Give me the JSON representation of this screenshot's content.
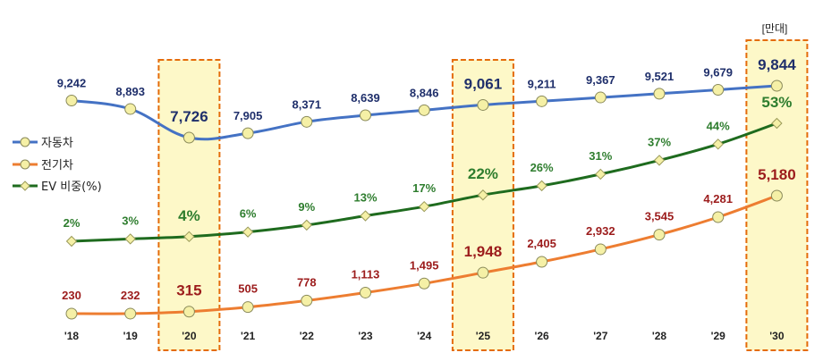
{
  "chart_data": {
    "type": "line",
    "unit_label": "[만대]",
    "categories": [
      "'18",
      "'19",
      "'20",
      "'21",
      "'22",
      "'23",
      "'24",
      "'25",
      "'26",
      "'27",
      "'28",
      "'29",
      "'30"
    ],
    "highlight": [
      "'20",
      "'25",
      "'30"
    ],
    "series": [
      {
        "name": "자동차",
        "color": "#4472c4",
        "label_color": "#1f2f6b",
        "values": [
          9242,
          8893,
          7726,
          7905,
          8371,
          8639,
          8846,
          9061,
          9211,
          9367,
          9521,
          9679,
          9844
        ],
        "labels": [
          "9,242",
          "8,893",
          "7,726",
          "7,905",
          "8,371",
          "8,639",
          "8,846",
          "9,061",
          "9,211",
          "9,367",
          "9,521",
          "9,679",
          "9,844"
        ]
      },
      {
        "name": "전기차",
        "color": "#ed7d31",
        "label_color": "#9c1c1c",
        "values": [
          230,
          232,
          315,
          505,
          778,
          1113,
          1495,
          1948,
          2405,
          2932,
          3545,
          4281,
          5180
        ],
        "labels": [
          "230",
          "232",
          "315",
          "505",
          "778",
          "1,113",
          "1,495",
          "1,948",
          "2,405",
          "2,932",
          "3,545",
          "4,281",
          "5,180"
        ]
      },
      {
        "name": "EV 비중(%)",
        "color": "#1e6b1e",
        "label_color": "#2e7d2e",
        "values": [
          2,
          3,
          4,
          6,
          9,
          13,
          17,
          22,
          26,
          31,
          37,
          44,
          53
        ],
        "labels": [
          "2%",
          "3%",
          "4%",
          "6%",
          "9%",
          "13%",
          "17%",
          "22%",
          "26%",
          "31%",
          "37%",
          "44%",
          "53%"
        ]
      }
    ],
    "grid": false,
    "legend_position": "left"
  }
}
